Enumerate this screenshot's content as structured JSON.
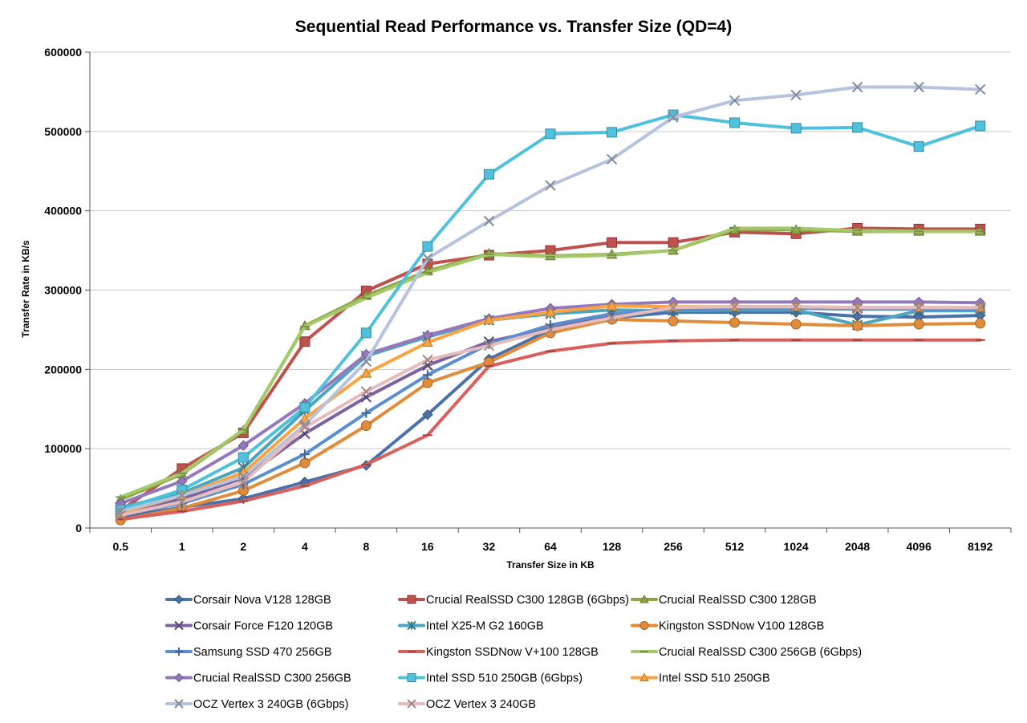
{
  "chart_data": {
    "type": "line",
    "title": "Sequential Read Performance vs. Transfer Size (QD=4)",
    "xlabel": "Transfer Size in KB",
    "ylabel": "Transfer Rate in KB/s",
    "ylim": [
      0,
      600000
    ],
    "yticks": [
      "0",
      "100000",
      "200000",
      "300000",
      "400000",
      "500000",
      "600000"
    ],
    "categories": [
      "0.5",
      "1",
      "2",
      "4",
      "8",
      "16",
      "32",
      "64",
      "128",
      "256",
      "512",
      "1024",
      "2048",
      "4096",
      "8192"
    ],
    "grid": true,
    "legend_position": "bottom",
    "series": [
      {
        "name": "Corsair Nova V128 128GB",
        "color": "#4a72a8",
        "marker": "diamond",
        "values": [
          14000,
          26000,
          37000,
          58000,
          79000,
          143000,
          213000,
          250000,
          265000,
          272000,
          272000,
          272000,
          267000,
          266000,
          268000
        ]
      },
      {
        "name": "Crucial RealSSD C300 128GB (6Gbps)",
        "color": "#c0504d",
        "marker": "square",
        "values": [
          22000,
          75000,
          120000,
          235000,
          299000,
          333000,
          344000,
          350000,
          360000,
          360000,
          373000,
          371000,
          378000,
          377000,
          377000
        ]
      },
      {
        "name": "Crucial RealSSD C300 128GB",
        "color": "#8da644",
        "marker": "triangle",
        "values": [
          36000,
          68000,
          123000,
          255000,
          293000,
          324000,
          346000,
          343000,
          345000,
          350000,
          376000,
          376000,
          374000,
          374000,
          374000
        ]
      },
      {
        "name": "Corsair Force F120 120GB",
        "color": "#7b62a0",
        "marker": "x",
        "values": [
          16000,
          37000,
          63000,
          119000,
          165000,
          205000,
          235000,
          252000,
          268000,
          278000,
          279000,
          279000,
          277000,
          277000,
          277000
        ]
      },
      {
        "name": "Intel X25-M G2 160GB",
        "color": "#4ba5bf",
        "marker": "star",
        "values": [
          26000,
          44000,
          76000,
          148000,
          217000,
          241000,
          262000,
          270000,
          275000,
          274000,
          275000,
          275000,
          256000,
          274000,
          274000
        ]
      },
      {
        "name": "Kingston SSDNow V100 128GB",
        "color": "#e08c3a",
        "marker": "circle",
        "values": [
          10000,
          25000,
          47000,
          82000,
          129000,
          183000,
          209000,
          246000,
          263000,
          261000,
          259000,
          257000,
          255000,
          257000,
          258000
        ]
      },
      {
        "name": "Samsung SSD 470 256GB",
        "color": "#5a8ed0",
        "marker": "plus",
        "values": [
          17000,
          31000,
          55000,
          93000,
          145000,
          193000,
          232000,
          256000,
          270000,
          275000,
          277000,
          277000,
          276000,
          276000,
          276000
        ]
      },
      {
        "name": "Kingston SSDNow V+100 128GB",
        "color": "#d9605c",
        "marker": "dash",
        "values": [
          11000,
          21000,
          34000,
          53000,
          80000,
          117000,
          204000,
          223000,
          233000,
          236000,
          237000,
          237000,
          237000,
          237000,
          237000
        ]
      },
      {
        "name": "Crucial RealSSD C300 256GB (6Gbps)",
        "color": "#a5c96a",
        "marker": "dash",
        "values": [
          39000,
          69000,
          124000,
          254000,
          290000,
          322000,
          345000,
          342000,
          344000,
          350000,
          378000,
          378000,
          375000,
          374000,
          374000
        ]
      },
      {
        "name": "Crucial RealSSD C300 256GB",
        "color": "#9579bd",
        "marker": "diamond",
        "values": [
          31000,
          59000,
          104000,
          157000,
          219000,
          243000,
          264000,
          277000,
          282000,
          285000,
          285000,
          285000,
          285000,
          285000,
          284000
        ]
      },
      {
        "name": "Intel SSD 510 250GB (6Gbps)",
        "color": "#4fc1dc",
        "marker": "square",
        "values": [
          23000,
          48000,
          89000,
          152000,
          246000,
          355000,
          446000,
          497000,
          499000,
          521000,
          511000,
          504000,
          505000,
          481000,
          507000
        ]
      },
      {
        "name": "Intel SSD 510 250GB",
        "color": "#f9a441",
        "marker": "triangle",
        "values": [
          19000,
          41000,
          70000,
          138000,
          195000,
          234000,
          262000,
          272000,
          280000,
          279000,
          279000,
          279000,
          278000,
          278000,
          278000
        ]
      },
      {
        "name": "OCZ Vertex 3 240GB (6Gbps)",
        "color": "#b5c3dc",
        "marker": "x",
        "values": [
          21000,
          41000,
          65000,
          130000,
          210000,
          340000,
          387000,
          432000,
          465000,
          518000,
          539000,
          546000,
          556000,
          556000,
          553000
        ]
      },
      {
        "name": "OCZ Vertex 3 240GB",
        "color": "#e4bcbc",
        "marker": "x",
        "values": [
          16000,
          33000,
          58000,
          127000,
          172000,
          212000,
          230000,
          250000,
          265000,
          278000,
          279000,
          279000,
          278000,
          278000,
          278000
        ]
      }
    ]
  }
}
